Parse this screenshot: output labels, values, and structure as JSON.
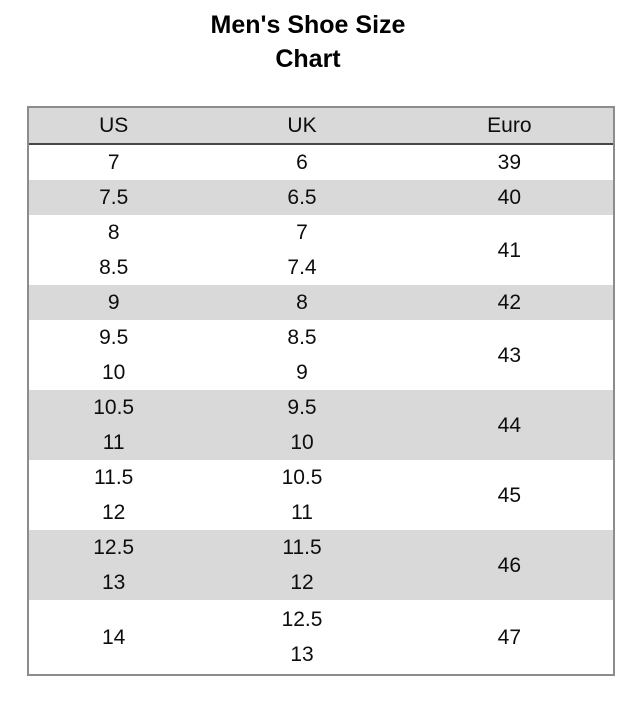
{
  "title": {
    "line1": "Men's Shoe Size",
    "line2": "Chart"
  },
  "chart_data": {
    "type": "table",
    "title": "Men's Shoe Size Chart",
    "columns": [
      "US",
      "UK",
      "Euro"
    ],
    "rows": [
      {
        "us": [
          "7"
        ],
        "uk": [
          "6"
        ],
        "euro": "39"
      },
      {
        "us": [
          "7.5"
        ],
        "uk": [
          "6.5"
        ],
        "euro": "40"
      },
      {
        "us": [
          "8",
          "8.5"
        ],
        "uk": [
          "7",
          "7.4"
        ],
        "euro": "41"
      },
      {
        "us": [
          "9"
        ],
        "uk": [
          "8"
        ],
        "euro": "42"
      },
      {
        "us": [
          "9.5",
          "10"
        ],
        "uk": [
          "8.5",
          "9"
        ],
        "euro": "43"
      },
      {
        "us": [
          "10.5",
          "11"
        ],
        "uk": [
          "9.5",
          "10"
        ],
        "euro": "44"
      },
      {
        "us": [
          "11.5",
          "12"
        ],
        "uk": [
          "10.5",
          "11"
        ],
        "euro": "45"
      },
      {
        "us": [
          "12.5",
          "13"
        ],
        "uk": [
          "11.5",
          "12"
        ],
        "euro": "46"
      },
      {
        "us": [
          "14"
        ],
        "uk": [
          "12.5",
          "13"
        ],
        "euro": "47"
      }
    ],
    "striped_row_indices": [
      1,
      3,
      5,
      7
    ],
    "layout": {
      "header_background": "shaded",
      "zebra_striping": true,
      "column_dividers": false
    }
  },
  "colors": {
    "stripe_bg": "#d9d9d9",
    "header_bg": "#d9d9d9",
    "outer_border": "#8c8c8c",
    "header_divider": "#474747",
    "text": "#0d0d0d",
    "page_bg": "#ffffff"
  }
}
